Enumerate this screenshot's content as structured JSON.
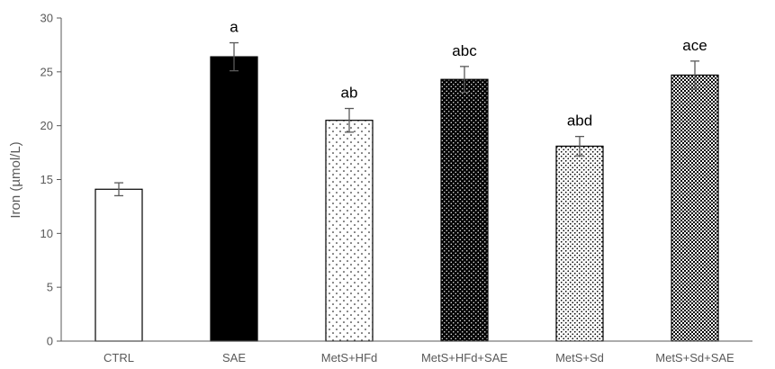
{
  "chart_data": {
    "type": "bar",
    "title": "",
    "xlabel": "",
    "ylabel": "Iron (µmol/L)",
    "ylim": [
      0,
      30
    ],
    "yticks": [
      0,
      5,
      10,
      15,
      20,
      25,
      30
    ],
    "grid": false,
    "legend": "none",
    "categories": [
      "CTRL",
      "SAE",
      "MetS+HFd",
      "MetS+HFd+SAE",
      "MetS+Sd",
      "MetS+Sd+SAE"
    ],
    "values": [
      14.1,
      26.4,
      20.5,
      24.3,
      18.1,
      24.7
    ],
    "errors": [
      0.6,
      1.3,
      1.1,
      1.2,
      0.9,
      1.3
    ],
    "significance_labels": [
      "",
      "a",
      "ab",
      "abc",
      "abd",
      "ace"
    ],
    "fill_patterns": [
      "white",
      "black",
      "sparse-dots",
      "dense-dots-on-black",
      "dense-dots",
      "checker"
    ],
    "colors": {
      "axis": "#595959",
      "bar_outline": "#000000",
      "error_bar": "#595959"
    }
  }
}
